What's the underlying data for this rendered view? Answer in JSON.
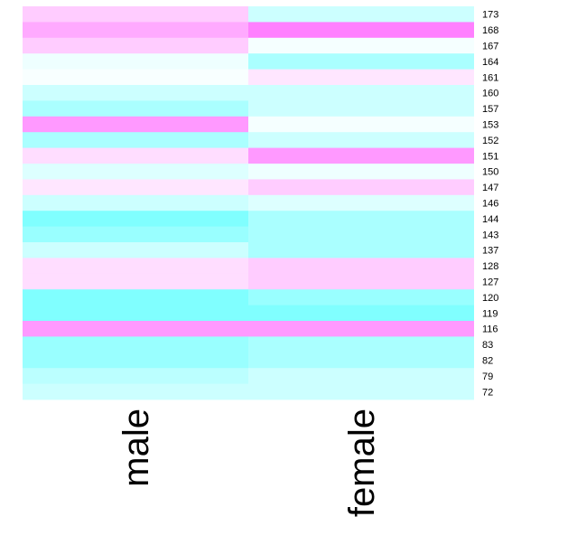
{
  "chart_data": {
    "type": "heatmap",
    "title": "",
    "xlabel": "",
    "ylabel": "",
    "columns": [
      "male",
      "female"
    ],
    "rows": [
      "173",
      "168",
      "167",
      "164",
      "161",
      "160",
      "157",
      "153",
      "152",
      "151",
      "150",
      "147",
      "146",
      "144",
      "143",
      "137",
      "128",
      "127",
      "120",
      "119",
      "116",
      "83",
      "82",
      "79",
      "72"
    ],
    "colors": [
      [
        "#ffccff",
        "#ccffff"
      ],
      [
        "#ffaaff",
        "#ff80ff"
      ],
      [
        "#ffccff",
        "#f5ffff"
      ],
      [
        "#eeffff",
        "#aaffff"
      ],
      [
        "#f8ffff",
        "#ffe6ff"
      ],
      [
        "#ccffff",
        "#ccffff"
      ],
      [
        "#aaffff",
        "#ccffff"
      ],
      [
        "#ff99ff",
        "#f5ffff"
      ],
      [
        "#aaffff",
        "#ccffff"
      ],
      [
        "#ffddff",
        "#ff99ff"
      ],
      [
        "#ddffff",
        "#eeffff"
      ],
      [
        "#ffe6ff",
        "#ffccff"
      ],
      [
        "#ccffff",
        "#ddffff"
      ],
      [
        "#80ffff",
        "#aaffff"
      ],
      [
        "#99ffff",
        "#aaffff"
      ],
      [
        "#ccffff",
        "#aaffff"
      ],
      [
        "#ffddff",
        "#ffccff"
      ],
      [
        "#ffddff",
        "#ffccff"
      ],
      [
        "#80ffff",
        "#99ffff"
      ],
      [
        "#80ffff",
        "#80ffff"
      ],
      [
        "#ff99ff",
        "#ff99ff"
      ],
      [
        "#99ffff",
        "#aaffff"
      ],
      [
        "#99ffff",
        "#aaffff"
      ],
      [
        "#bbffff",
        "#ccffff"
      ],
      [
        "#ccffff",
        "#ccffff"
      ]
    ]
  }
}
